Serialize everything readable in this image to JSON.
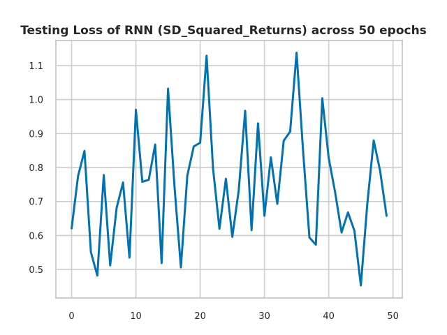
{
  "chart_data": {
    "type": "line",
    "title": "Testing Loss of RNN (SD_Squared_Returns) across 50 epochs",
    "xlabel": "",
    "ylabel": "",
    "xlim": [
      -2.45,
      51.45
    ],
    "ylim": [
      0.416,
      1.174
    ],
    "grid": true,
    "x_ticks": [
      0,
      10,
      20,
      30,
      40,
      50
    ],
    "y_ticks": [
      0.5,
      0.6,
      0.7,
      0.8,
      0.9,
      1.0,
      1.1
    ],
    "x_tick_labels": [
      "0",
      "10",
      "20",
      "30",
      "40",
      "50"
    ],
    "y_tick_labels": [
      "0.5",
      "0.6",
      "0.7",
      "0.8",
      "0.9",
      "1.0",
      "1.1"
    ],
    "series": [
      {
        "color": "#0072b2",
        "x": [
          0,
          1,
          2,
          3,
          4,
          5,
          6,
          7,
          8,
          9,
          10,
          11,
          12,
          13,
          14,
          15,
          16,
          17,
          18,
          19,
          20,
          21,
          22,
          23,
          24,
          25,
          26,
          27,
          28,
          29,
          30,
          31,
          32,
          33,
          34,
          35,
          36,
          37,
          38,
          39,
          40,
          41,
          42,
          43,
          44,
          45,
          46,
          47,
          48,
          49
        ],
        "values": [
          0.621,
          0.775,
          0.849,
          0.551,
          0.482,
          0.778,
          0.512,
          0.681,
          0.756,
          0.535,
          0.97,
          0.758,
          0.764,
          0.868,
          0.519,
          1.032,
          0.746,
          0.506,
          0.776,
          0.862,
          0.873,
          1.129,
          0.798,
          0.62,
          0.767,
          0.596,
          0.733,
          0.967,
          0.616,
          0.93,
          0.658,
          0.83,
          0.693,
          0.879,
          0.906,
          1.138,
          0.852,
          0.594,
          0.573,
          1.004,
          0.828,
          0.727,
          0.609,
          0.668,
          0.614,
          0.453,
          0.692,
          0.88,
          0.79,
          0.658
        ]
      }
    ]
  }
}
